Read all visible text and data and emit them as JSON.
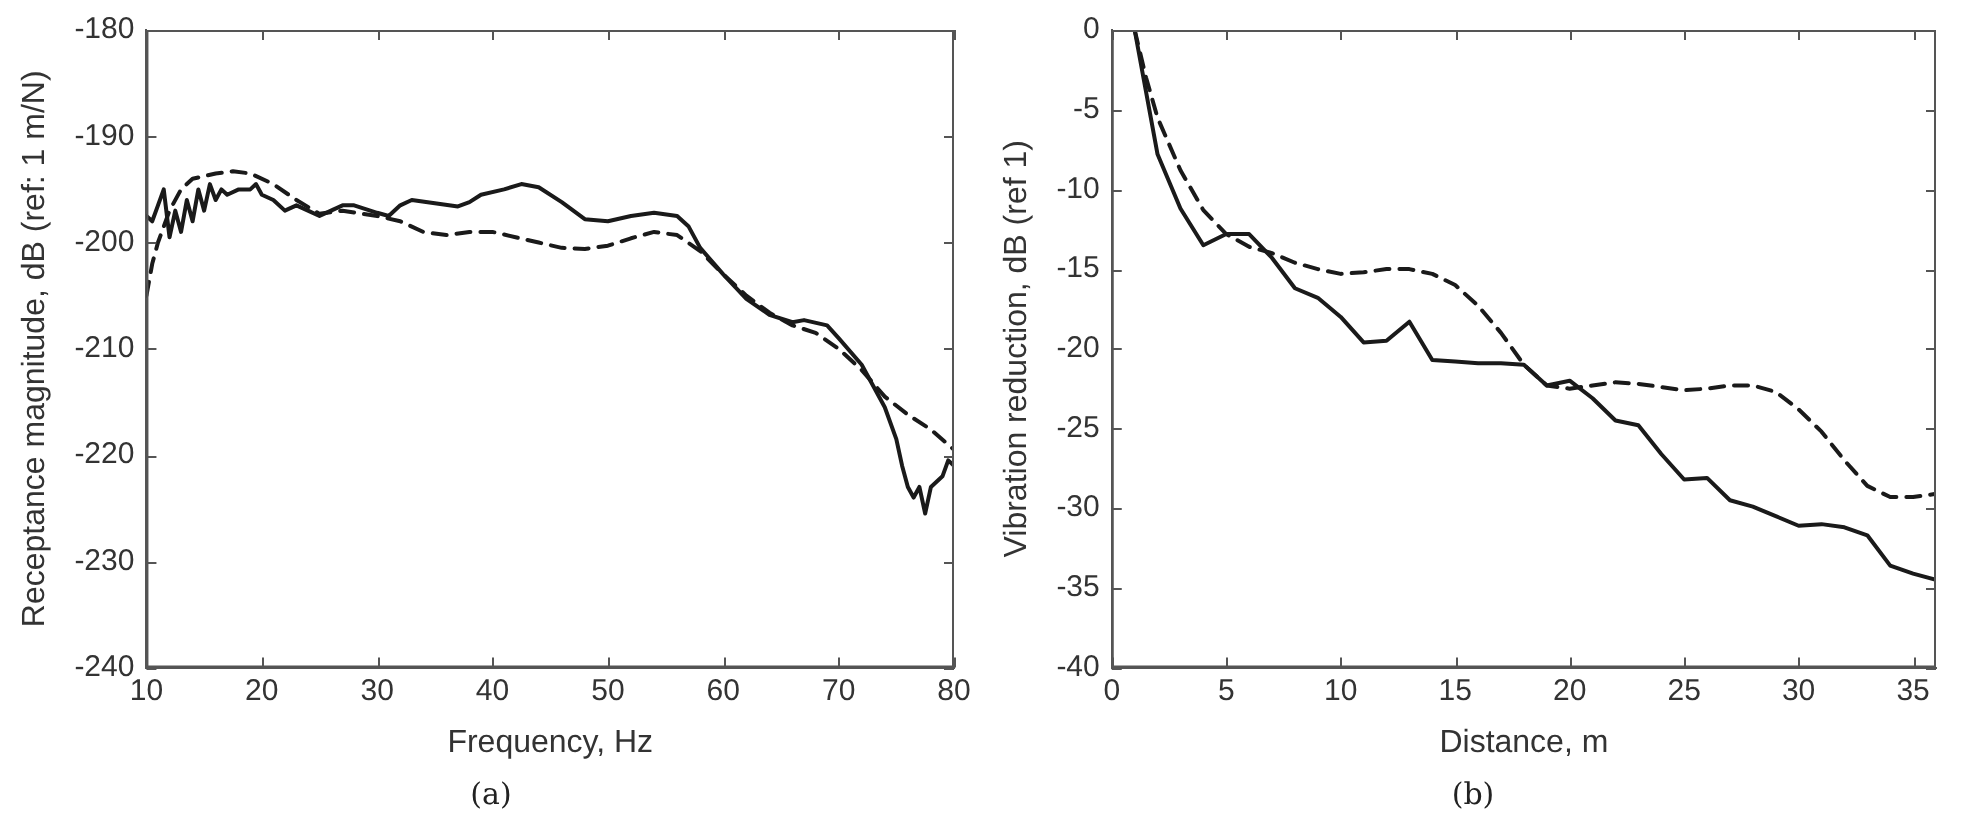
{
  "chart_data": [
    {
      "type": "line",
      "xlabel": "Frequency, Hz",
      "ylabel": "Receptance magnitude, dB (ref: 1 m/N)",
      "annotations": [
        "(a)"
      ],
      "xlim": [
        10,
        80
      ],
      "xticks": [
        10,
        20,
        30,
        40,
        50,
        60,
        70,
        80
      ],
      "ylim": [
        -240,
        -180
      ],
      "yticks": [
        -240,
        -230,
        -220,
        -210,
        -200,
        -190,
        -180
      ],
      "grid": false,
      "legend": false,
      "marker": "none",
      "series": [
        {
          "color": "#1a1a1a",
          "line_style": "solid",
          "x": [
            10,
            10.5,
            11,
            11.5,
            12,
            12.5,
            13,
            13.5,
            14,
            14.5,
            15,
            15.5,
            16,
            16.5,
            17,
            18,
            19,
            19.5,
            20,
            21,
            22,
            23,
            24,
            25,
            26,
            27,
            28,
            30,
            31,
            32,
            33,
            35,
            37,
            38,
            39,
            41,
            42.5,
            44,
            46,
            48,
            50,
            52,
            54,
            56,
            57,
            58,
            60,
            62,
            64,
            66,
            67,
            69,
            70,
            72,
            73,
            74,
            75,
            75.5,
            76,
            76.5,
            77,
            77.5,
            78,
            79,
            79.5,
            80
          ],
          "values": [
            -197.5,
            -198,
            -196.5,
            -195,
            -199.5,
            -197,
            -199,
            -196,
            -198,
            -195,
            -197,
            -194.5,
            -196,
            -195,
            -195.5,
            -195,
            -195,
            -194.5,
            -195.5,
            -196,
            -197,
            -196.5,
            -197,
            -197.5,
            -197,
            -196.5,
            -196.5,
            -197.2,
            -197.5,
            -196.5,
            -196,
            -196.3,
            -196.6,
            -196.2,
            -195.5,
            -195,
            -194.5,
            -194.8,
            -196.2,
            -197.8,
            -198,
            -197.5,
            -197.2,
            -197.5,
            -198.5,
            -200.5,
            -203,
            -205.3,
            -206.8,
            -207.5,
            -207.3,
            -207.8,
            -209,
            -211.5,
            -213.5,
            -215.5,
            -218.5,
            -221,
            -223,
            -224,
            -223,
            -225.5,
            -223,
            -222,
            -220.5,
            -221
          ]
        },
        {
          "color": "#1a1a1a",
          "line_style": "dashed",
          "x": [
            10,
            10.5,
            11,
            12,
            13,
            14,
            16,
            17.5,
            19,
            21,
            23,
            25,
            27,
            30,
            32,
            34,
            36,
            38,
            40,
            42,
            44,
            46,
            48,
            50,
            52,
            54,
            56,
            58,
            60,
            62,
            64,
            66,
            68,
            70,
            72,
            74,
            76,
            78,
            80
          ],
          "values": [
            -205,
            -202,
            -200,
            -197,
            -195,
            -194,
            -193.5,
            -193.3,
            -193.5,
            -194.5,
            -196,
            -197.3,
            -197,
            -197.5,
            -198,
            -199,
            -199.3,
            -199,
            -199,
            -199.5,
            -200,
            -200.5,
            -200.6,
            -200.3,
            -199.6,
            -199,
            -199.3,
            -200.8,
            -203,
            -205,
            -206.6,
            -207.8,
            -208.5,
            -210,
            -212,
            -214.5,
            -216.2,
            -217.6,
            -219.5
          ]
        }
      ]
    },
    {
      "type": "line",
      "xlabel": "Distance, m",
      "ylabel": "Vibration reduction, dB (ref 1)",
      "annotations": [
        "(b)"
      ],
      "xlim": [
        0,
        36
      ],
      "xticks": [
        0,
        5,
        10,
        15,
        20,
        25,
        30,
        35
      ],
      "ylim": [
        -40,
        0
      ],
      "yticks": [
        -40,
        -35,
        -30,
        -25,
        -20,
        -15,
        -10,
        -5,
        0
      ],
      "grid": false,
      "legend": false,
      "marker": "none",
      "series": [
        {
          "color": "#1a1a1a",
          "line_style": "solid",
          "x": [
            1,
            2,
            3,
            4,
            5,
            6,
            7,
            8,
            9,
            10,
            11,
            12,
            13,
            14,
            15,
            16,
            17,
            18,
            19,
            20,
            21,
            22,
            23,
            24,
            25,
            26,
            27,
            28,
            29,
            30,
            31,
            32,
            33,
            34,
            35,
            36
          ],
          "values": [
            0,
            -7.8,
            -11.2,
            -13.5,
            -12.8,
            -12.8,
            -14.3,
            -16.2,
            -16.8,
            -18,
            -19.6,
            -19.5,
            -18.3,
            -20.7,
            -20.8,
            -20.9,
            -20.9,
            -21,
            -22.3,
            -22,
            -23.1,
            -24.5,
            -24.8,
            -26.6,
            -28.2,
            -28.1,
            -29.5,
            -29.9,
            -30.5,
            -31.1,
            -31,
            -31.2,
            -31.7,
            -33.6,
            -34.1,
            -34.5
          ]
        },
        {
          "color": "#1a1a1a",
          "line_style": "dashed",
          "x": [
            1,
            1.5,
            2,
            3,
            4,
            5,
            6,
            7,
            8,
            9,
            10,
            11,
            12,
            13,
            14,
            15,
            16,
            17,
            18,
            19,
            20,
            21,
            22,
            23,
            24,
            25,
            26,
            27,
            28,
            29,
            30,
            31,
            32,
            33,
            34,
            35,
            36
          ],
          "values": [
            0,
            -3,
            -5.5,
            -8.8,
            -11.3,
            -12.8,
            -13.6,
            -14,
            -14.6,
            -15,
            -15.3,
            -15.2,
            -15,
            -15,
            -15.3,
            -16,
            -17.3,
            -19,
            -21,
            -22.3,
            -22.5,
            -22.3,
            -22.1,
            -22.2,
            -22.4,
            -22.6,
            -22.5,
            -22.3,
            -22.3,
            -22.7,
            -23.8,
            -25.2,
            -27,
            -28.6,
            -29.3,
            -29.3,
            -29.1
          ]
        }
      ]
    }
  ]
}
